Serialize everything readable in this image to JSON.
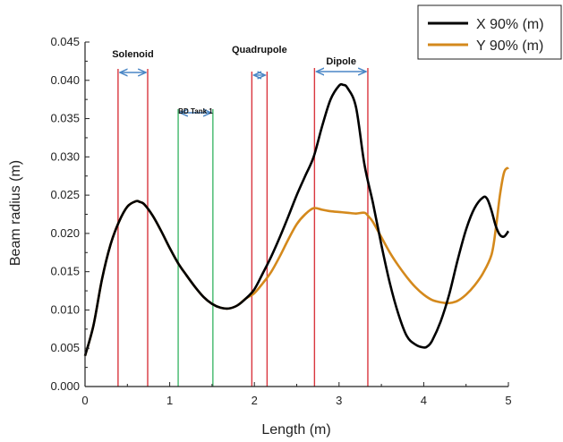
{
  "chart_data": {
    "type": "line",
    "xlabel": "Length (m)",
    "ylabel": "Beam radius (m)",
    "xlim": [
      0,
      5
    ],
    "ylim": [
      0,
      0.045
    ],
    "x_ticks": [
      "0",
      "1",
      "2",
      "3",
      "4",
      "5"
    ],
    "y_ticks": [
      "0.000",
      "0.005",
      "0.010",
      "0.015",
      "0.020",
      "0.025",
      "0.030",
      "0.035",
      "0.040",
      "0.045"
    ],
    "legend_position": "top-right",
    "series": [
      {
        "name": "X 90% (m)",
        "color": "#000000",
        "x": [
          0,
          0.1,
          0.2,
          0.3,
          0.4,
          0.5,
          0.6,
          0.65,
          0.7,
          0.8,
          0.9,
          1.0,
          1.1,
          1.2,
          1.3,
          1.4,
          1.5,
          1.6,
          1.7,
          1.8,
          1.9,
          2.0,
          2.1,
          2.2,
          2.3,
          2.4,
          2.5,
          2.6,
          2.7,
          2.8,
          2.9,
          3.0,
          3.05,
          3.1,
          3.2,
          3.3,
          3.4,
          3.5,
          3.6,
          3.7,
          3.8,
          3.9,
          4.0,
          4.05,
          4.1,
          4.2,
          4.3,
          4.4,
          4.5,
          4.6,
          4.7,
          4.75,
          4.8,
          4.85,
          4.9,
          4.95,
          5.0
        ],
        "y": [
          0.004,
          0.008,
          0.014,
          0.0185,
          0.0215,
          0.0235,
          0.0242,
          0.0241,
          0.0238,
          0.0223,
          0.0203,
          0.0181,
          0.0161,
          0.0145,
          0.013,
          0.0117,
          0.0108,
          0.0103,
          0.0102,
          0.0106,
          0.0115,
          0.0127,
          0.0148,
          0.017,
          0.0195,
          0.0222,
          0.025,
          0.0275,
          0.03,
          0.034,
          0.0375,
          0.0393,
          0.0394,
          0.039,
          0.0365,
          0.029,
          0.024,
          0.0185,
          0.0135,
          0.0095,
          0.0066,
          0.0055,
          0.0051,
          0.0053,
          0.006,
          0.0085,
          0.012,
          0.0165,
          0.0205,
          0.0233,
          0.0247,
          0.0245,
          0.023,
          0.021,
          0.0198,
          0.0196,
          0.0203
        ]
      },
      {
        "name": "Y 90% (m)",
        "color": "#d4891c",
        "x": [
          0,
          0.1,
          0.2,
          0.3,
          0.4,
          0.5,
          0.6,
          0.65,
          0.7,
          0.8,
          0.9,
          1.0,
          1.1,
          1.2,
          1.3,
          1.4,
          1.5,
          1.6,
          1.7,
          1.8,
          1.9,
          2.0,
          2.1,
          2.2,
          2.3,
          2.4,
          2.5,
          2.6,
          2.7,
          2.8,
          2.9,
          3.0,
          3.1,
          3.2,
          3.3,
          3.35,
          3.4,
          3.5,
          3.6,
          3.7,
          3.8,
          3.9,
          4.0,
          4.1,
          4.2,
          4.3,
          4.4,
          4.5,
          4.6,
          4.7,
          4.8,
          4.85,
          4.9,
          4.95,
          5.0
        ],
        "y": [
          0.004,
          0.008,
          0.014,
          0.0185,
          0.0215,
          0.0235,
          0.0242,
          0.0241,
          0.0238,
          0.0223,
          0.0203,
          0.0181,
          0.0161,
          0.0145,
          0.013,
          0.0117,
          0.0108,
          0.0103,
          0.0102,
          0.0106,
          0.0115,
          0.0122,
          0.0135,
          0.015,
          0.017,
          0.0192,
          0.0212,
          0.0225,
          0.0233,
          0.0231,
          0.0229,
          0.0228,
          0.0227,
          0.0226,
          0.0227,
          0.0222,
          0.0215,
          0.0195,
          0.0175,
          0.0158,
          0.0143,
          0.013,
          0.012,
          0.0113,
          0.011,
          0.0109,
          0.0112,
          0.012,
          0.0132,
          0.0148,
          0.0172,
          0.0205,
          0.025,
          0.028,
          0.0286
        ]
      }
    ],
    "regions": [
      {
        "label": "Solenoid",
        "x_start": 0.39,
        "x_end": 0.74,
        "color": "#d9363e"
      },
      {
        "label": "BD Tank 1",
        "x_start": 1.1,
        "x_end": 1.51,
        "color": "#41b86a"
      },
      {
        "label": "Quadrupole",
        "x_start": 1.97,
        "x_end": 2.15,
        "color": "#d9363e"
      },
      {
        "label": "Dipole",
        "x_start": 2.71,
        "x_end": 3.34,
        "color": "#d9363e"
      }
    ]
  }
}
